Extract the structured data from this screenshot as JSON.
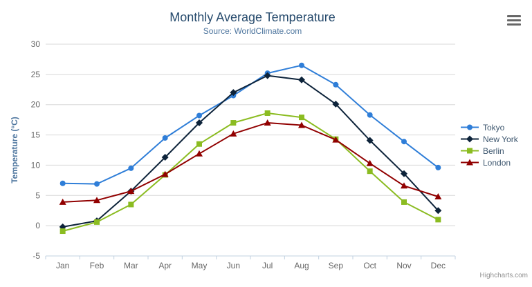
{
  "chart_data": {
    "type": "line",
    "title": "Monthly Average Temperature",
    "subtitle": "Source: WorldClimate.com",
    "categories": [
      "Jan",
      "Feb",
      "Mar",
      "Apr",
      "May",
      "Jun",
      "Jul",
      "Aug",
      "Sep",
      "Oct",
      "Nov",
      "Dec"
    ],
    "xlabel": "",
    "ylabel": "Temperature (°C)",
    "ylim": [
      -5,
      30
    ],
    "yticks": [
      -5,
      0,
      5,
      10,
      15,
      20,
      25,
      30
    ],
    "grid": true,
    "legend_position": "right",
    "series": [
      {
        "name": "Tokyo",
        "color": "#2f7ed8",
        "marker": "circle",
        "values": [
          7.0,
          6.9,
          9.5,
          14.5,
          18.2,
          21.5,
          25.2,
          26.5,
          23.3,
          18.3,
          13.9,
          9.6
        ]
      },
      {
        "name": "New York",
        "color": "#0d233a",
        "marker": "diamond",
        "values": [
          -0.2,
          0.8,
          5.7,
          11.3,
          17.0,
          22.0,
          24.8,
          24.1,
          20.1,
          14.1,
          8.6,
          2.5
        ]
      },
      {
        "name": "Berlin",
        "color": "#8bbc21",
        "marker": "square",
        "values": [
          -0.9,
          0.6,
          3.5,
          8.4,
          13.5,
          17.0,
          18.6,
          17.9,
          14.3,
          9.0,
          3.9,
          1.0
        ]
      },
      {
        "name": "London",
        "color": "#910000",
        "marker": "triangle",
        "values": [
          3.9,
          4.2,
          5.7,
          8.5,
          11.9,
          15.2,
          17.0,
          16.6,
          14.2,
          10.3,
          6.6,
          4.8
        ]
      }
    ]
  },
  "ui": {
    "credits": "Highcharts.com",
    "icons": {
      "export_menu": "hamburger-bars-icon"
    },
    "colors": {
      "title": "#274b6d",
      "subtitle": "#4d759e",
      "axis_labels": "#666666",
      "axis_title": "#4d759e",
      "gridline": "#d8d8d8",
      "axis_line": "#c0d0e0",
      "legend_text": "#3e576f",
      "credits_text": "#909090",
      "menu_icon": "#666666"
    }
  }
}
